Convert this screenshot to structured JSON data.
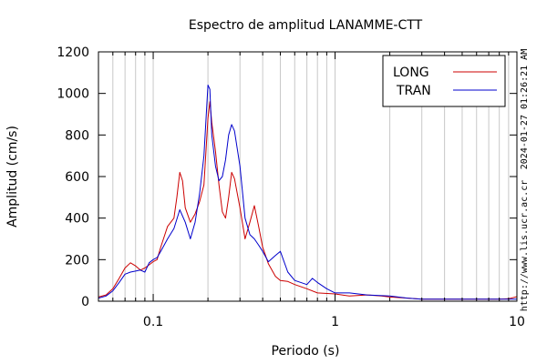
{
  "chart_data": {
    "type": "line",
    "title": "Espectro de amplitud LANAMME-CTT",
    "xlabel": "Periodo (s)",
    "ylabel": "Amplitud (cm/s)",
    "x_scale": "log",
    "xlim": [
      0.05,
      10
    ],
    "ylim": [
      0,
      1200
    ],
    "x_ticks": [
      0.1,
      1,
      10
    ],
    "x_tick_labels": [
      "0.1",
      "1",
      "10"
    ],
    "y_ticks": [
      0,
      200,
      400,
      600,
      800,
      1000,
      1200
    ],
    "y_tick_labels": [
      "0",
      "200",
      "400",
      "600",
      "800",
      "1000",
      "1200"
    ],
    "grid": true,
    "legend_position": "top-right",
    "series": [
      {
        "name": "LONG",
        "color": "#cc0000",
        "points": [
          [
            0.05,
            20
          ],
          [
            0.055,
            30
          ],
          [
            0.06,
            60
          ],
          [
            0.065,
            110
          ],
          [
            0.07,
            160
          ],
          [
            0.075,
            185
          ],
          [
            0.08,
            170
          ],
          [
            0.085,
            150
          ],
          [
            0.09,
            160
          ],
          [
            0.095,
            175
          ],
          [
            0.1,
            190
          ],
          [
            0.105,
            200
          ],
          [
            0.11,
            260
          ],
          [
            0.12,
            360
          ],
          [
            0.13,
            400
          ],
          [
            0.135,
            500
          ],
          [
            0.14,
            620
          ],
          [
            0.145,
            580
          ],
          [
            0.15,
            450
          ],
          [
            0.16,
            380
          ],
          [
            0.17,
            420
          ],
          [
            0.18,
            480
          ],
          [
            0.19,
            560
          ],
          [
            0.2,
            880
          ],
          [
            0.205,
            960
          ],
          [
            0.21,
            860
          ],
          [
            0.22,
            720
          ],
          [
            0.23,
            560
          ],
          [
            0.24,
            430
          ],
          [
            0.25,
            400
          ],
          [
            0.26,
            500
          ],
          [
            0.27,
            620
          ],
          [
            0.28,
            590
          ],
          [
            0.3,
            450
          ],
          [
            0.32,
            300
          ],
          [
            0.34,
            380
          ],
          [
            0.36,
            460
          ],
          [
            0.38,
            360
          ],
          [
            0.4,
            260
          ],
          [
            0.43,
            180
          ],
          [
            0.47,
            120
          ],
          [
            0.5,
            100
          ],
          [
            0.55,
            95
          ],
          [
            0.6,
            80
          ],
          [
            0.7,
            60
          ],
          [
            0.8,
            40
          ],
          [
            1.0,
            35
          ],
          [
            1.2,
            25
          ],
          [
            1.5,
            30
          ],
          [
            1.8,
            25
          ],
          [
            2.0,
            20
          ],
          [
            2.5,
            15
          ],
          [
            3.0,
            10
          ],
          [
            4.0,
            10
          ],
          [
            5.0,
            10
          ],
          [
            6.0,
            10
          ],
          [
            7.0,
            10
          ],
          [
            8.0,
            10
          ],
          [
            9.0,
            12
          ],
          [
            10.0,
            22
          ]
        ]
      },
      {
        "name": "TRAN",
        "color": "#0000cc",
        "points": [
          [
            0.05,
            15
          ],
          [
            0.055,
            25
          ],
          [
            0.06,
            50
          ],
          [
            0.065,
            90
          ],
          [
            0.07,
            130
          ],
          [
            0.075,
            140
          ],
          [
            0.08,
            145
          ],
          [
            0.085,
            150
          ],
          [
            0.09,
            140
          ],
          [
            0.095,
            185
          ],
          [
            0.1,
            200
          ],
          [
            0.105,
            210
          ],
          [
            0.11,
            240
          ],
          [
            0.12,
            300
          ],
          [
            0.13,
            350
          ],
          [
            0.14,
            440
          ],
          [
            0.15,
            380
          ],
          [
            0.16,
            300
          ],
          [
            0.17,
            380
          ],
          [
            0.18,
            520
          ],
          [
            0.19,
            700
          ],
          [
            0.2,
            1040
          ],
          [
            0.205,
            1020
          ],
          [
            0.21,
            800
          ],
          [
            0.22,
            650
          ],
          [
            0.23,
            580
          ],
          [
            0.24,
            600
          ],
          [
            0.25,
            680
          ],
          [
            0.26,
            800
          ],
          [
            0.27,
            850
          ],
          [
            0.28,
            820
          ],
          [
            0.3,
            650
          ],
          [
            0.32,
            400
          ],
          [
            0.34,
            320
          ],
          [
            0.36,
            300
          ],
          [
            0.38,
            270
          ],
          [
            0.4,
            240
          ],
          [
            0.43,
            190
          ],
          [
            0.47,
            220
          ],
          [
            0.5,
            240
          ],
          [
            0.55,
            140
          ],
          [
            0.6,
            100
          ],
          [
            0.7,
            80
          ],
          [
            0.75,
            110
          ],
          [
            0.8,
            90
          ],
          [
            0.9,
            60
          ],
          [
            1.0,
            40
          ],
          [
            1.2,
            40
          ],
          [
            1.5,
            30
          ],
          [
            2.0,
            25
          ],
          [
            2.5,
            15
          ],
          [
            3.0,
            10
          ],
          [
            4.0,
            10
          ],
          [
            5.0,
            10
          ],
          [
            6.0,
            10
          ],
          [
            7.0,
            10
          ],
          [
            8.0,
            10
          ],
          [
            9.0,
            10
          ],
          [
            10.0,
            10
          ]
        ]
      }
    ]
  },
  "side_text": {
    "timestamp": "2024-01-27 01:26:21 AM",
    "url": "http://www.lis.ucr.ac.cr"
  }
}
